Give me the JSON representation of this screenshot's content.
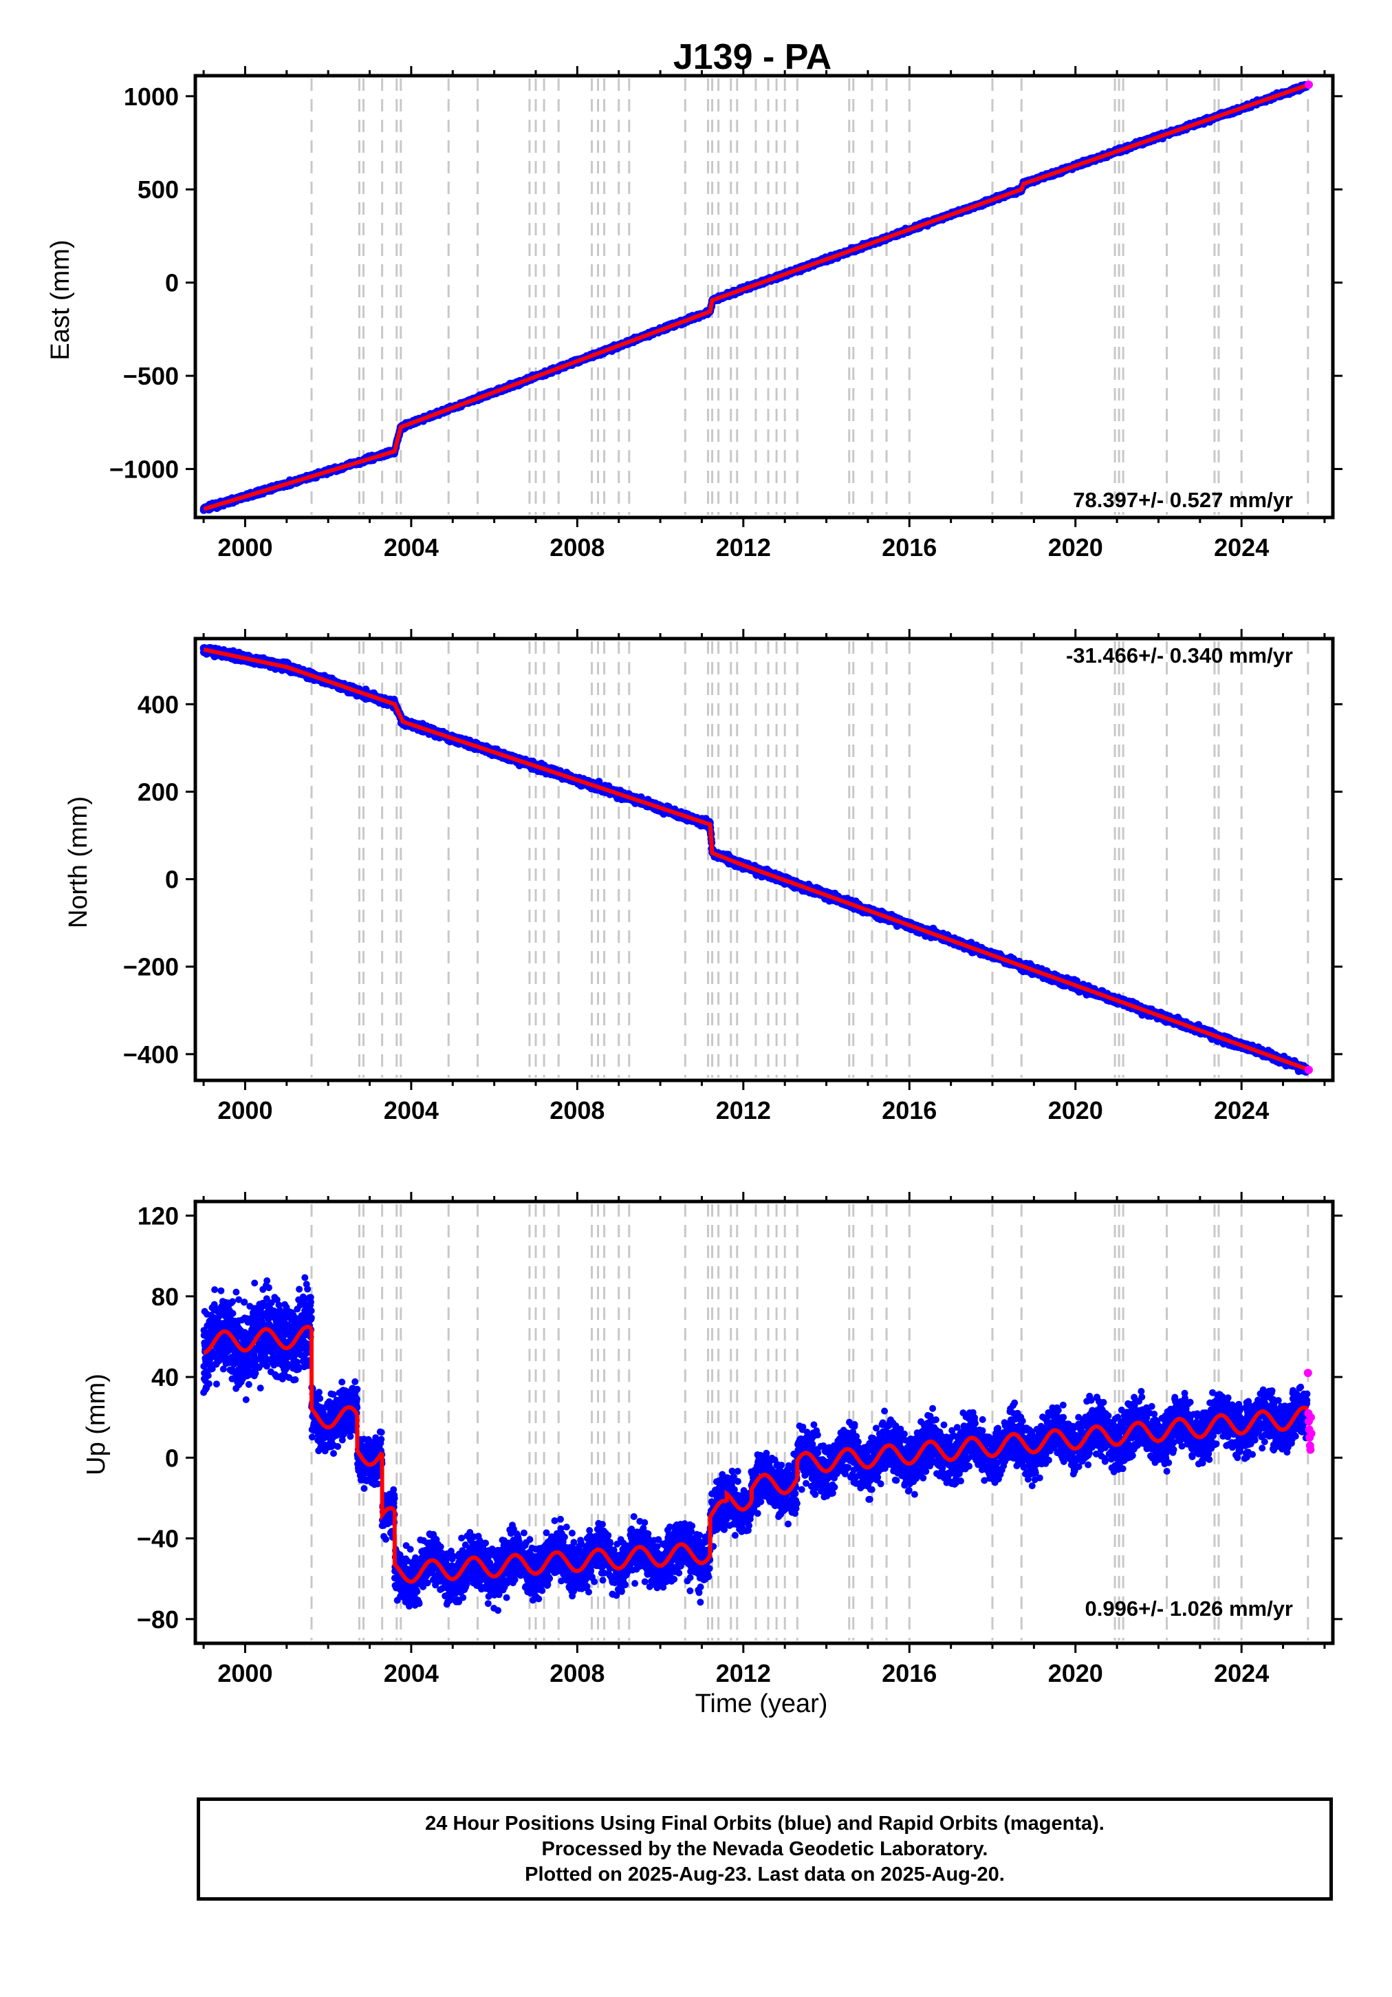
{
  "title": "J139 - PA",
  "colors": {
    "final_orbits": "#0000ff",
    "rapid_orbits": "#ff00ff",
    "model": "#ff0000",
    "event_lines": "#c8c8c8",
    "frame": "#000000"
  },
  "chart_data": [
    {
      "type": "scatter",
      "component": "east",
      "xlabel": "",
      "ylabel": "East (mm)",
      "xlim": [
        1998.8,
        2026.2
      ],
      "ylim": [
        -1260,
        1110
      ],
      "x_ticks": [
        2000,
        2004,
        2008,
        2012,
        2016,
        2020,
        2024
      ],
      "y_ticks": [
        -1000,
        -500,
        0,
        500,
        1000
      ],
      "rate_text": "78.397+/- 0.527 mm/yr",
      "rate_position": "bottom-right",
      "model_breakpoints": [
        {
          "x": 1999.0,
          "y": -1215
        },
        {
          "x": 2003.6,
          "y": -905
        },
        {
          "x": 2003.75,
          "y": -775
        },
        {
          "x": 2011.2,
          "y": -155
        },
        {
          "x": 2011.25,
          "y": -95
        },
        {
          "x": 2018.7,
          "y": 500
        },
        {
          "x": 2018.75,
          "y": 530
        },
        {
          "x": 2025.6,
          "y": 1060
        }
      ],
      "noise_mm": 8,
      "rapid_points": [
        {
          "x": 2025.62,
          "y": 1062
        }
      ]
    },
    {
      "type": "scatter",
      "component": "north",
      "xlabel": "",
      "ylabel": "North (mm)",
      "xlim": [
        1998.8,
        2026.2
      ],
      "ylim": [
        -460,
        550
      ],
      "x_ticks": [
        2000,
        2004,
        2008,
        2012,
        2016,
        2020,
        2024
      ],
      "y_ticks": [
        -400,
        -200,
        0,
        200,
        400
      ],
      "rate_text": "-31.466+/- 0.340 mm/yr",
      "rate_position": "top-right",
      "model_breakpoints": [
        {
          "x": 1999.0,
          "y": 525
        },
        {
          "x": 2001.0,
          "y": 485
        },
        {
          "x": 2003.6,
          "y": 400
        },
        {
          "x": 2003.8,
          "y": 360
        },
        {
          "x": 2011.2,
          "y": 125
        },
        {
          "x": 2011.25,
          "y": 60
        },
        {
          "x": 2012.0,
          "y": 32
        },
        {
          "x": 2025.6,
          "y": -435
        }
      ],
      "noise_mm": 6,
      "rapid_points": [
        {
          "x": 2025.62,
          "y": -436
        }
      ]
    },
    {
      "type": "scatter",
      "component": "up",
      "xlabel": "Time (year)",
      "ylabel": "Up (mm)",
      "xlim": [
        1998.8,
        2026.2
      ],
      "ylim": [
        -92,
        127
      ],
      "x_ticks": [
        2000,
        2004,
        2008,
        2012,
        2016,
        2020,
        2024
      ],
      "y_ticks": [
        -80,
        -40,
        0,
        40,
        80,
        120
      ],
      "rate_text": "0.996+/- 1.026 mm/yr",
      "rate_position": "bottom-right",
      "model_segments": [
        {
          "x0": 1999.0,
          "x1": 2001.6,
          "y0": 57,
          "y1": 60
        },
        {
          "x0": 2001.6,
          "x1": 2002.7,
          "y0": 20,
          "y1": 20
        },
        {
          "x0": 2002.7,
          "x1": 2003.3,
          "y0": 2,
          "y1": 1
        },
        {
          "x0": 2003.3,
          "x1": 2003.6,
          "y0": -30,
          "y1": -30
        },
        {
          "x0": 2003.6,
          "x1": 2011.2,
          "y0": -57,
          "y1": -47
        },
        {
          "x0": 2011.2,
          "x1": 2011.6,
          "y0": -28,
          "y1": -26
        },
        {
          "x0": 2011.6,
          "x1": 2012.2,
          "y0": -22,
          "y1": -20
        },
        {
          "x0": 2012.2,
          "x1": 2013.3,
          "y0": -14,
          "y1": -12
        },
        {
          "x0": 2013.3,
          "x1": 2025.6,
          "y0": -3,
          "y1": 20
        }
      ],
      "seasonal_amplitude_mm": 5,
      "noise_mm": 9,
      "rapid_points": [
        {
          "x": 2025.6,
          "y": 42
        },
        {
          "x": 2025.61,
          "y": 22
        },
        {
          "x": 2025.62,
          "y": 18
        },
        {
          "x": 2025.63,
          "y": 14
        },
        {
          "x": 2025.64,
          "y": 10
        },
        {
          "x": 2025.65,
          "y": 6
        },
        {
          "x": 2025.66,
          "y": 4
        },
        {
          "x": 2025.67,
          "y": 20
        },
        {
          "x": 2025.68,
          "y": 12
        }
      ]
    }
  ],
  "event_lines_years": [
    2001.6,
    2002.75,
    2002.85,
    2003.3,
    2003.65,
    2003.75,
    2004.9,
    2005.6,
    2006.85,
    2007.0,
    2007.2,
    2007.55,
    2008.35,
    2008.5,
    2008.65,
    2009.0,
    2009.25,
    2010.6,
    2011.15,
    2011.25,
    2011.4,
    2011.7,
    2011.85,
    2012.3,
    2012.6,
    2012.8,
    2013.0,
    2013.3,
    2014.55,
    2014.65,
    2015.1,
    2015.45,
    2016.0,
    2018.0,
    2018.7,
    2020.95,
    2021.05,
    2021.15,
    2022.2,
    2023.35,
    2023.45,
    2024.0,
    2025.6
  ],
  "footer": {
    "line1": "24 Hour Positions Using Final Orbits (blue) and Rapid Orbits (magenta).",
    "line2": "Processed by the Nevada Geodetic Laboratory.",
    "line3": "Plotted on 2025-Aug-23. Last data on 2025-Aug-20."
  }
}
